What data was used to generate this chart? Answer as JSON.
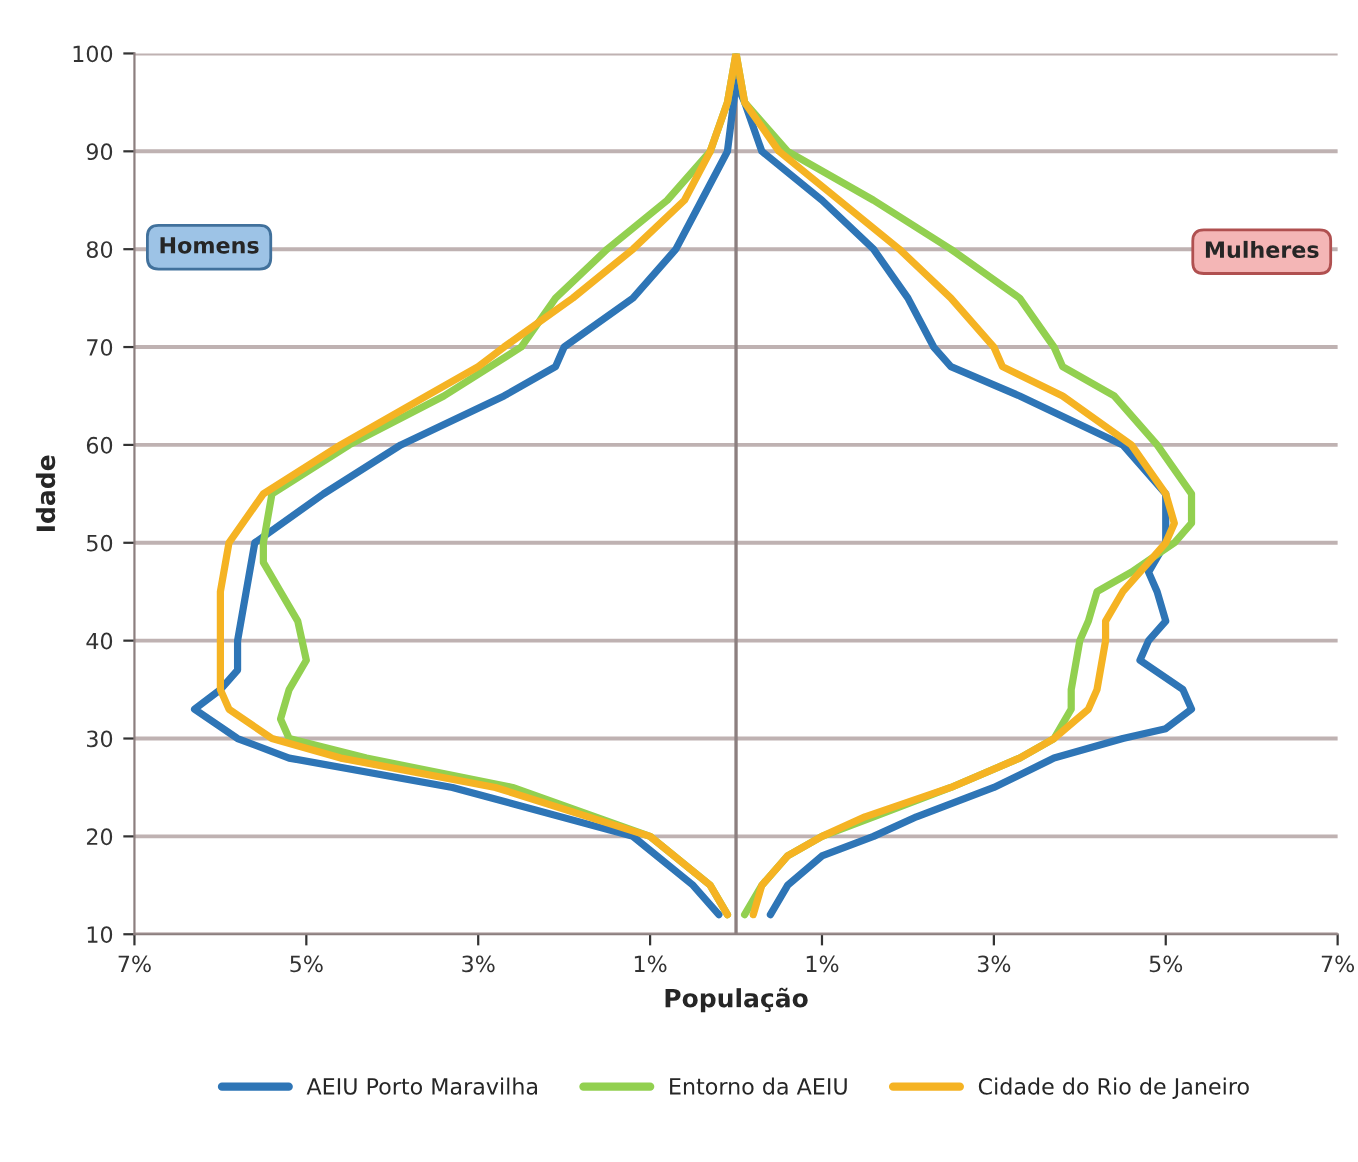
{
  "chart_data": {
    "type": "line",
    "xlabel": "População",
    "ylabel": "Idade",
    "xlim": [
      -7,
      7
    ],
    "ylim": [
      10,
      100
    ],
    "xticks": [
      {
        "value": -7,
        "label": "7%"
      },
      {
        "value": -5,
        "label": "5%"
      },
      {
        "value": -3,
        "label": "3%"
      },
      {
        "value": -1,
        "label": "1%"
      },
      {
        "value": 1,
        "label": "1%"
      },
      {
        "value": 3,
        "label": "3%"
      },
      {
        "value": 5,
        "label": "5%"
      },
      {
        "value": 7,
        "label": "7%"
      }
    ],
    "yticks": [
      10,
      20,
      30,
      40,
      50,
      60,
      70,
      80,
      90,
      100
    ],
    "grid": "y",
    "legend": "bottom",
    "line_style": "solid",
    "marker": "none",
    "ref_lines": [
      {
        "axis": "x",
        "value": 0,
        "color": "#8c7f7f"
      }
    ],
    "annotations": [
      "Homens",
      "Mulheres"
    ],
    "series": [
      {
        "name": "AEIU Porto Maravilha",
        "color": "#2e75b6",
        "x": [
          -0.2,
          -0.5,
          -1.2,
          -3.3,
          -5.2,
          -5.8,
          -6.3,
          -6.0,
          -5.8,
          -5.8,
          -5.7,
          -5.6,
          -4.8,
          -3.9,
          -2.7,
          -2.1,
          -2.0,
          -1.2,
          -0.7,
          -0.4,
          -0.1,
          0.0,
          0.1,
          0.3,
          1.0,
          1.6,
          2.0,
          2.3,
          2.5,
          3.3,
          4.5,
          5.0,
          5.0,
          5.0,
          4.8,
          4.9,
          5.0,
          4.8,
          4.7,
          5.2,
          5.3,
          5.0,
          4.5,
          3.7,
          3.0,
          2.1,
          1.6,
          1.0,
          0.6,
          0.4
        ],
        "values": [
          12,
          15,
          20,
          25,
          28,
          30,
          33,
          35,
          37,
          40,
          45,
          50,
          55,
          60,
          65,
          68,
          70,
          75,
          80,
          85,
          90,
          97,
          95,
          90,
          85,
          80,
          75,
          70,
          68,
          65,
          60,
          55,
          52,
          50,
          47,
          45,
          42,
          40,
          38,
          35,
          33,
          31,
          30,
          28,
          25,
          22,
          20,
          18,
          15,
          12
        ]
      },
      {
        "name": "Entorno da AEIU",
        "color": "#92d050",
        "x": [
          -0.1,
          -0.3,
          -1.0,
          -2.6,
          -4.3,
          -5.2,
          -5.3,
          -5.2,
          -5.0,
          -5.1,
          -5.3,
          -5.5,
          -5.5,
          -5.4,
          -4.5,
          -3.4,
          -2.5,
          -2.1,
          -1.5,
          -0.8,
          -0.3,
          -0.1,
          0.0,
          0.1,
          0.6,
          1.6,
          2.5,
          3.3,
          3.7,
          3.8,
          4.4,
          4.9,
          5.3,
          5.3,
          5.1,
          4.6,
          4.2,
          4.1,
          4.0,
          3.9,
          3.9,
          3.7,
          3.3,
          2.5,
          1.6,
          1.0,
          0.6,
          0.3,
          0.1
        ],
        "values": [
          12,
          15,
          20,
          25,
          28,
          30,
          32,
          35,
          38,
          42,
          45,
          48,
          50,
          55,
          60,
          65,
          70,
          75,
          80,
          85,
          90,
          95,
          100,
          95,
          90,
          85,
          80,
          75,
          70,
          68,
          65,
          60,
          55,
          52,
          50,
          47,
          45,
          42,
          40,
          35,
          33,
          30,
          28,
          25,
          22,
          20,
          18,
          15,
          12
        ]
      },
      {
        "name": "Cidade do Rio de Janeiro",
        "color": "#f5b323",
        "x": [
          -0.1,
          -0.3,
          -1.0,
          -2.8,
          -4.6,
          -5.4,
          -5.9,
          -6.0,
          -6.0,
          -6.0,
          -5.9,
          -5.5,
          -4.6,
          -3.6,
          -3.0,
          -2.7,
          -1.9,
          -1.2,
          -0.6,
          -0.3,
          -0.1,
          0.0,
          0.1,
          0.5,
          1.2,
          1.9,
          2.5,
          3.0,
          3.1,
          3.8,
          4.6,
          5.0,
          5.1,
          5.0,
          4.7,
          4.5,
          4.3,
          4.3,
          4.2,
          4.1,
          3.7,
          3.3,
          2.5,
          1.5,
          1.0,
          0.6,
          0.3,
          0.2
        ],
        "values": [
          12,
          15,
          20,
          25,
          28,
          30,
          33,
          35,
          40,
          45,
          50,
          55,
          60,
          65,
          68,
          70,
          75,
          80,
          85,
          90,
          95,
          100,
          95,
          90,
          85,
          80,
          75,
          70,
          68,
          65,
          60,
          55,
          52,
          50,
          47,
          45,
          42,
          40,
          35,
          33,
          30,
          28,
          25,
          22,
          20,
          18,
          15,
          12
        ]
      }
    ]
  }
}
